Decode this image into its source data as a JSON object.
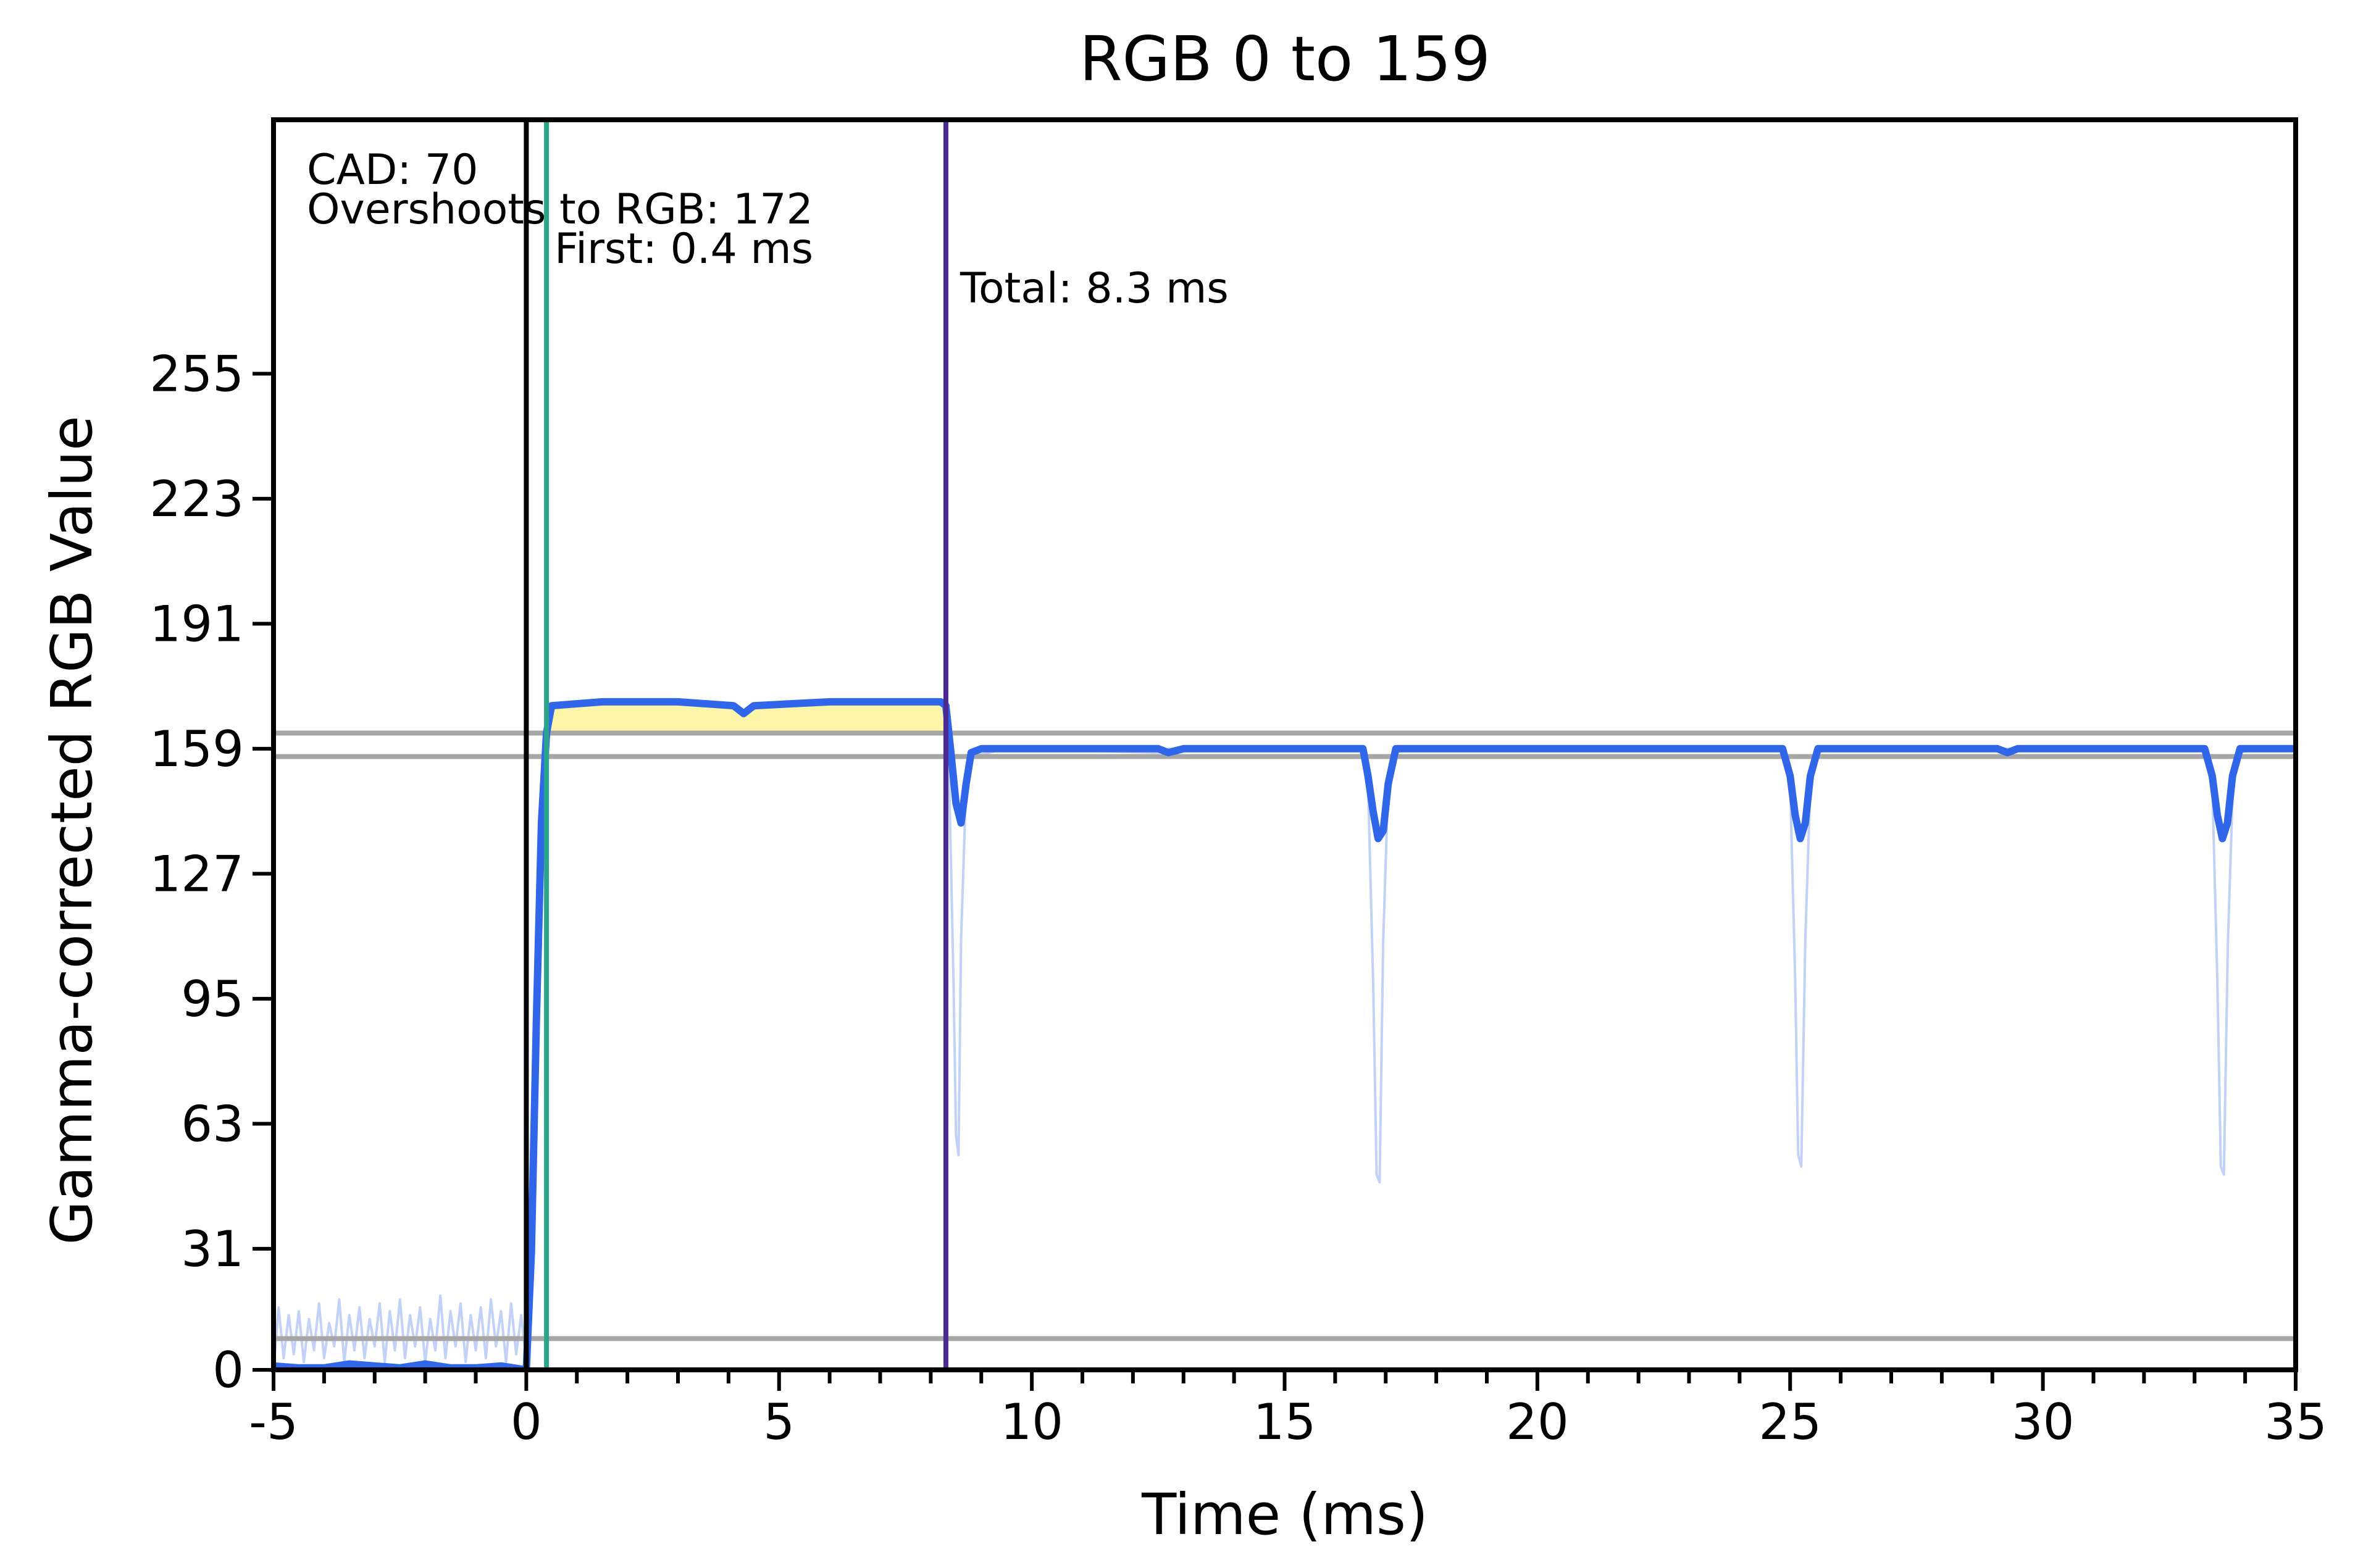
{
  "chart_data": {
    "type": "line",
    "title": "RGB 0 to 159",
    "xlabel": "Time (ms)",
    "ylabel": "Gamma-corrected RGB Value",
    "xlim": [
      -5,
      35
    ],
    "ylim": [
      0,
      320
    ],
    "x_ticks": [
      -5,
      0,
      5,
      10,
      15,
      20,
      25,
      30,
      35
    ],
    "x_tick_labels": [
      "-5",
      "0",
      "5",
      "10",
      "15",
      "20",
      "25",
      "30",
      "35"
    ],
    "x_minor_step": 1,
    "y_ticks": [
      0,
      31,
      63,
      95,
      127,
      159,
      191,
      223,
      255
    ],
    "y_tick_labels": [
      "0",
      "31",
      "63",
      "95",
      "127",
      "159",
      "191",
      "223",
      "255"
    ],
    "grid": false,
    "legend": "none",
    "reference_lines": [
      {
        "name": "upper-tolerance-line",
        "y": 163,
        "color": "#a6a6a6"
      },
      {
        "name": "lower-tolerance-line",
        "y": 157,
        "color": "#a6a6a6"
      },
      {
        "name": "start-tolerance-line",
        "y": 8,
        "color": "#a6a6a6"
      }
    ],
    "markers": [
      {
        "name": "start-marker-line",
        "x": 0,
        "color": "#000000"
      },
      {
        "name": "first-marker-line",
        "x": 0.4,
        "color": "#2aa58a"
      },
      {
        "name": "total-marker-line",
        "x": 8.3,
        "color": "#4b2a91"
      }
    ],
    "overshoot_fill": {
      "color": "#fdf5a8",
      "x_start": 0,
      "x_end": 8.3,
      "y_base": 163
    },
    "annotations": {
      "cad": "CAD: 70",
      "overshoot": "Overshoots to RGB: 172",
      "first": "First: 0.4 ms",
      "total": "Total: 8.3 ms"
    },
    "series": [
      {
        "style": "raw",
        "color": "#c2d1f7",
        "points": [
          [
            -5,
            0
          ],
          [
            -4.9,
            16
          ],
          [
            -4.8,
            3
          ],
          [
            -4.7,
            14
          ],
          [
            -4.6,
            4
          ],
          [
            -4.5,
            15
          ],
          [
            -4.4,
            2
          ],
          [
            -4.3,
            13
          ],
          [
            -4.2,
            5
          ],
          [
            -4.1,
            17
          ],
          [
            -4.0,
            3
          ],
          [
            -3.9,
            12
          ],
          [
            -3.8,
            6
          ],
          [
            -3.7,
            18
          ],
          [
            -3.6,
            2
          ],
          [
            -3.5,
            14
          ],
          [
            -3.4,
            5
          ],
          [
            -3.3,
            16
          ],
          [
            -3.2,
            3
          ],
          [
            -3.1,
            13
          ],
          [
            -3.0,
            6
          ],
          [
            -2.9,
            17
          ],
          [
            -2.8,
            2
          ],
          [
            -2.7,
            15
          ],
          [
            -2.6,
            5
          ],
          [
            -2.5,
            18
          ],
          [
            -2.4,
            3
          ],
          [
            -2.3,
            14
          ],
          [
            -2.2,
            6
          ],
          [
            -2.1,
            16
          ],
          [
            -2.0,
            2
          ],
          [
            -1.9,
            13
          ],
          [
            -1.8,
            5
          ],
          [
            -1.7,
            19
          ],
          [
            -1.6,
            3
          ],
          [
            -1.5,
            15
          ],
          [
            -1.4,
            6
          ],
          [
            -1.3,
            17
          ],
          [
            -1.2,
            2
          ],
          [
            -1.1,
            14
          ],
          [
            -1.0,
            5
          ],
          [
            -0.9,
            16
          ],
          [
            -0.8,
            3
          ],
          [
            -0.7,
            18
          ],
          [
            -0.6,
            6
          ],
          [
            -0.5,
            15
          ],
          [
            -0.4,
            2
          ],
          [
            -0.3,
            17
          ],
          [
            -0.2,
            4
          ],
          [
            -0.1,
            14
          ],
          [
            0,
            2
          ],
          [
            0.1,
            30
          ],
          [
            0.2,
            100
          ],
          [
            0.3,
            150
          ],
          [
            0.4,
            163
          ],
          [
            0.5,
            170
          ],
          [
            1.5,
            171
          ],
          [
            3,
            171
          ],
          [
            4.1,
            170
          ],
          [
            4.3,
            168
          ],
          [
            4.5,
            170
          ],
          [
            6,
            171
          ],
          [
            8.0,
            171
          ],
          [
            8.25,
            170
          ],
          [
            8.35,
            160
          ],
          [
            8.45,
            100
          ],
          [
            8.5,
            60
          ],
          [
            8.55,
            55
          ],
          [
            8.6,
            110
          ],
          [
            8.7,
            150
          ],
          [
            8.8,
            157
          ],
          [
            9.5,
            159
          ],
          [
            12.5,
            158
          ],
          [
            12.7,
            159
          ],
          [
            16.5,
            159
          ],
          [
            16.65,
            150
          ],
          [
            16.75,
            100
          ],
          [
            16.82,
            50
          ],
          [
            16.88,
            48
          ],
          [
            16.95,
            110
          ],
          [
            17.05,
            150
          ],
          [
            17.2,
            158
          ],
          [
            17.5,
            159
          ],
          [
            24.8,
            159
          ],
          [
            25.0,
            150
          ],
          [
            25.1,
            100
          ],
          [
            25.16,
            55
          ],
          [
            25.22,
            52
          ],
          [
            25.3,
            110
          ],
          [
            25.4,
            150
          ],
          [
            25.55,
            158
          ],
          [
            25.8,
            159
          ],
          [
            33.2,
            159
          ],
          [
            33.35,
            150
          ],
          [
            33.45,
            100
          ],
          [
            33.52,
            52
          ],
          [
            33.58,
            50
          ],
          [
            33.66,
            110
          ],
          [
            33.76,
            150
          ],
          [
            33.9,
            158
          ],
          [
            34.2,
            159
          ],
          [
            35,
            159
          ]
        ]
      },
      {
        "style": "smoothed",
        "color": "#2f66ea",
        "points": [
          [
            -5,
            1
          ],
          [
            -4.5,
            0.5
          ],
          [
            -4,
            0.5
          ],
          [
            -3.5,
            1.5
          ],
          [
            -3,
            1
          ],
          [
            -2.5,
            0.5
          ],
          [
            -2,
            1.5
          ],
          [
            -1.5,
            0.5
          ],
          [
            -1,
            0.5
          ],
          [
            -0.5,
            1
          ],
          [
            0,
            0
          ],
          [
            0.1,
            30
          ],
          [
            0.2,
            90
          ],
          [
            0.3,
            140
          ],
          [
            0.4,
            163
          ],
          [
            0.5,
            170
          ],
          [
            1.5,
            171
          ],
          [
            3,
            171
          ],
          [
            4.1,
            170
          ],
          [
            4.3,
            168
          ],
          [
            4.5,
            170
          ],
          [
            6,
            171
          ],
          [
            8.2,
            171
          ],
          [
            8.3,
            170
          ],
          [
            8.4,
            158
          ],
          [
            8.5,
            145
          ],
          [
            8.6,
            140
          ],
          [
            8.7,
            150
          ],
          [
            8.8,
            158
          ],
          [
            9.0,
            159
          ],
          [
            12.5,
            159
          ],
          [
            12.7,
            158
          ],
          [
            13,
            159
          ],
          [
            16.55,
            159
          ],
          [
            16.65,
            152
          ],
          [
            16.75,
            143
          ],
          [
            16.85,
            136
          ],
          [
            16.95,
            138
          ],
          [
            17.05,
            150
          ],
          [
            17.2,
            159
          ],
          [
            24.85,
            159
          ],
          [
            25.0,
            152
          ],
          [
            25.1,
            142
          ],
          [
            25.2,
            136
          ],
          [
            25.3,
            140
          ],
          [
            25.4,
            152
          ],
          [
            25.55,
            159
          ],
          [
            29.1,
            159
          ],
          [
            29.3,
            158
          ],
          [
            29.5,
            159
          ],
          [
            33.2,
            159
          ],
          [
            33.35,
            152
          ],
          [
            33.45,
            142
          ],
          [
            33.55,
            136
          ],
          [
            33.65,
            140
          ],
          [
            33.75,
            152
          ],
          [
            33.9,
            159
          ],
          [
            35,
            159
          ]
        ]
      }
    ]
  }
}
